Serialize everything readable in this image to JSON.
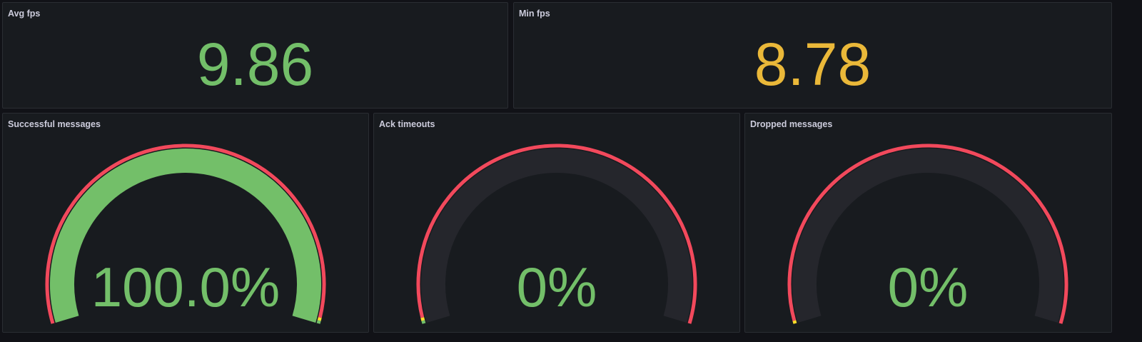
{
  "colors": {
    "green": "#73bf69",
    "yellow": "#fade2a",
    "red": "#f2495c",
    "orange": "#eab839",
    "track": "#25262c"
  },
  "stats": [
    {
      "title": "Avg fps",
      "value": "9.86",
      "color": "#73bf69"
    },
    {
      "title": "Min fps",
      "value": "8.78",
      "color": "#eab839"
    }
  ],
  "gauges": [
    {
      "title": "Successful messages",
      "value": "100.0%",
      "percent": 100,
      "color": "#73bf69",
      "thresholds": [
        {
          "from": 0,
          "to": 98.8,
          "color": "#f2495c"
        },
        {
          "from": 98.8,
          "to": 99.4,
          "color": "#fade2a"
        },
        {
          "from": 99.4,
          "to": 100,
          "color": "#73bf69"
        }
      ]
    },
    {
      "title": "Ack timeouts",
      "value": "0%",
      "percent": 0,
      "color": "#73bf69",
      "thresholds": [
        {
          "from": 0,
          "to": 0.6,
          "color": "#73bf69"
        },
        {
          "from": 0.6,
          "to": 1.2,
          "color": "#fade2a"
        },
        {
          "from": 1.2,
          "to": 100,
          "color": "#f2495c"
        }
      ]
    },
    {
      "title": "Dropped messages",
      "value": "0%",
      "percent": 0,
      "color": "#73bf69",
      "thresholds": [
        {
          "from": 0,
          "to": 0.6,
          "color": "#fade2a"
        },
        {
          "from": 0.6,
          "to": 100,
          "color": "#f2495c"
        }
      ]
    }
  ]
}
